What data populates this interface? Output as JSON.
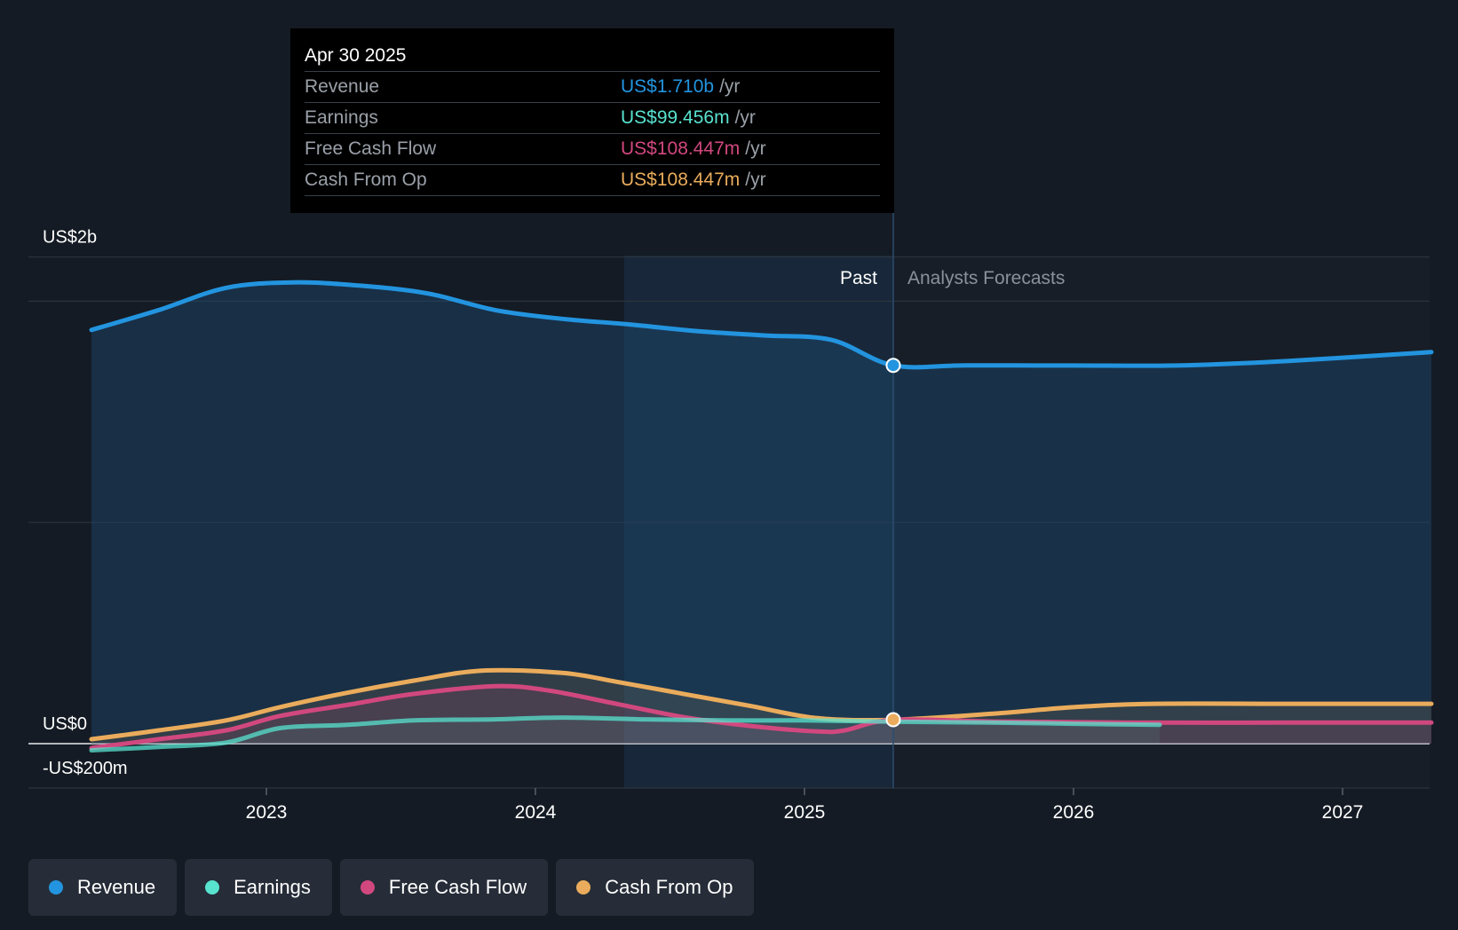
{
  "tooltip": {
    "date": "Apr 30 2025",
    "rows": [
      {
        "label": "Revenue",
        "value": "US$1.710b",
        "unit": "/yr",
        "color": "#2394df"
      },
      {
        "label": "Earnings",
        "value": "US$99.456m",
        "unit": "/yr",
        "color": "#58e3cf"
      },
      {
        "label": "Free Cash Flow",
        "value": "US$108.447m",
        "unit": "/yr",
        "color": "#d1487e"
      },
      {
        "label": "Cash From Op",
        "value": "US$108.447m",
        "unit": "/yr",
        "color": "#eaac5c"
      }
    ]
  },
  "regions": {
    "past": "Past",
    "forecast": "Analysts Forecasts"
  },
  "legend": [
    {
      "label": "Revenue",
      "color": "#2394df"
    },
    {
      "label": "Earnings",
      "color": "#58e3cf"
    },
    {
      "label": "Free Cash Flow",
      "color": "#d1487e"
    },
    {
      "label": "Cash From Op",
      "color": "#eaac5c"
    }
  ],
  "chart_data": {
    "type": "line",
    "title": "",
    "xlabel": "",
    "ylabel": "",
    "unit": "US$ millions",
    "ylim": [
      -200,
      2200
    ],
    "xlim": [
      2022.35,
      2027.33
    ],
    "y_tick_labels": [
      {
        "value": 2000,
        "label": "US$2b"
      },
      {
        "value": 0,
        "label": "US$0"
      },
      {
        "value": -200,
        "label": "-US$200m"
      }
    ],
    "x_ticks": [
      2023,
      2024,
      2025,
      2026,
      2027
    ],
    "x_tick_labels": [
      "2023",
      "2024",
      "2025",
      "2026",
      "2027"
    ],
    "past_end": 2025.33,
    "shaded_start": 2024.33,
    "series": [
      {
        "name": "Revenue",
        "color": "#2394df",
        "x": [
          2022.35,
          2022.6,
          2022.85,
          2023.1,
          2023.35,
          2023.6,
          2023.85,
          2024.1,
          2024.35,
          2024.6,
          2024.85,
          2025.1,
          2025.33,
          2025.6,
          2026.0,
          2026.4,
          2026.8,
          2027.33
        ],
        "values": [
          1870,
          1960,
          2060,
          2085,
          2070,
          2035,
          1960,
          1920,
          1895,
          1865,
          1845,
          1825,
          1710,
          1710,
          1709,
          1710,
          1730,
          1770
        ]
      },
      {
        "name": "Earnings",
        "color": "#58e3cf",
        "x": [
          2022.35,
          2022.6,
          2022.85,
          2023.05,
          2023.3,
          2023.55,
          2023.85,
          2024.1,
          2024.4,
          2024.7,
          2025.0,
          2025.33,
          2025.7,
          2026.0,
          2026.32
        ],
        "values": [
          -30,
          -15,
          5,
          70,
          85,
          105,
          110,
          118,
          110,
          105,
          105,
          99,
          95,
          90,
          85
        ]
      },
      {
        "name": "Free Cash Flow",
        "color": "#d1487e",
        "x": [
          2022.35,
          2022.6,
          2022.85,
          2023.05,
          2023.3,
          2023.55,
          2023.85,
          2024.05,
          2024.3,
          2024.55,
          2024.8,
          2025.05,
          2025.15,
          2025.33,
          2025.7,
          2026.2,
          2026.8,
          2027.33
        ],
        "values": [
          -20,
          20,
          60,
          125,
          175,
          225,
          260,
          240,
          180,
          120,
          80,
          55,
          60,
          108,
          100,
          95,
          95,
          95
        ]
      },
      {
        "name": "Cash From Op",
        "color": "#eaac5c",
        "x": [
          2022.35,
          2022.6,
          2022.85,
          2023.05,
          2023.3,
          2023.55,
          2023.8,
          2024.1,
          2024.3,
          2024.55,
          2024.8,
          2025.05,
          2025.33,
          2025.7,
          2026.0,
          2026.3,
          2026.8,
          2027.33
        ],
        "values": [
          20,
          60,
          105,
          165,
          230,
          285,
          330,
          320,
          280,
          225,
          170,
          115,
          108,
          135,
          165,
          180,
          180,
          180
        ]
      }
    ],
    "highlight_points": [
      {
        "series": "Revenue",
        "x": 2025.33,
        "value": 1710
      },
      {
        "series": "Cash From Op",
        "x": 2025.33,
        "value": 108.447
      }
    ]
  }
}
